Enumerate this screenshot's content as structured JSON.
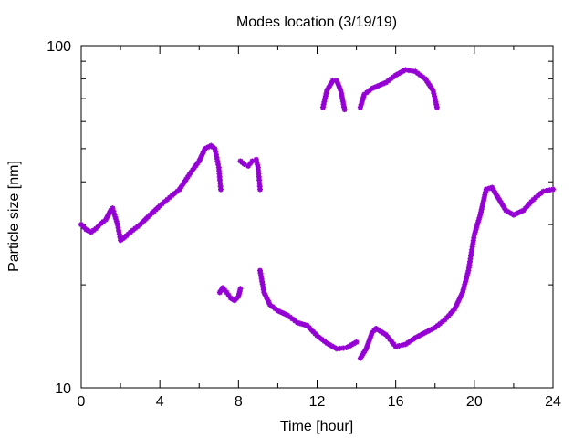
{
  "chart_data": {
    "type": "scatter",
    "title": "Modes location (3/19/19)",
    "xlabel": "Time [hour]",
    "ylabel": "Particle size [nm]",
    "xlim": [
      0,
      24
    ],
    "ylim": [
      10,
      100
    ],
    "yscale": "log",
    "x_ticks": [
      0,
      4,
      8,
      12,
      16,
      20,
      24
    ],
    "y_ticks": [
      10,
      100
    ],
    "grid": false,
    "marker_color": "#9400d3",
    "series": [
      {
        "segments": [
          [
            [
              0,
              30
            ],
            [
              0.25,
              29
            ],
            [
              0.5,
              28.5
            ],
            [
              0.75,
              29.2
            ],
            [
              1,
              30.2
            ],
            [
              1.25,
              31
            ],
            [
              1.5,
              33
            ],
            [
              1.6,
              33.5
            ],
            [
              1.7,
              32
            ],
            [
              1.85,
              30
            ],
            [
              2,
              27
            ],
            [
              2.2,
              27.5
            ],
            [
              2.5,
              28.5
            ],
            [
              3,
              30
            ],
            [
              3.5,
              32
            ],
            [
              4,
              34
            ],
            [
              4.5,
              36
            ],
            [
              5,
              38
            ],
            [
              5.5,
              42
            ],
            [
              6,
              46
            ],
            [
              6.3,
              50
            ],
            [
              6.6,
              51
            ],
            [
              6.8,
              50
            ],
            [
              6.9,
              47
            ],
            [
              7.0,
              44
            ],
            [
              7.1,
              38
            ]
          ],
          [
            [
              7.05,
              19
            ],
            [
              7.2,
              19.6
            ],
            [
              7.4,
              19
            ],
            [
              7.6,
              18.3
            ],
            [
              7.8,
              18
            ],
            [
              8.0,
              18.5
            ],
            [
              8.1,
              19.5
            ]
          ],
          [
            [
              8.1,
              46
            ],
            [
              8.3,
              45
            ],
            [
              8.5,
              44.5
            ],
            [
              8.7,
              46
            ],
            [
              8.9,
              46.5
            ],
            [
              9.0,
              44
            ],
            [
              9.1,
              38
            ]
          ],
          [
            [
              9.1,
              22
            ],
            [
              9.3,
              19
            ],
            [
              9.6,
              17.5
            ],
            [
              10,
              16.8
            ],
            [
              10.5,
              16.3
            ],
            [
              11,
              15.5
            ],
            [
              11.5,
              15.2
            ],
            [
              12,
              14.2
            ],
            [
              12.5,
              13.5
            ],
            [
              13,
              13
            ],
            [
              13.5,
              13.1
            ],
            [
              14,
              13.6
            ]
          ],
          [
            [
              14.2,
              12.2
            ],
            [
              14.5,
              13
            ],
            [
              14.8,
              14.5
            ],
            [
              15,
              14.9
            ],
            [
              15.5,
              14.3
            ],
            [
              16,
              13.2
            ],
            [
              16.5,
              13.4
            ],
            [
              17,
              14
            ],
            [
              17.5,
              14.5
            ],
            [
              18,
              15
            ],
            [
              18.5,
              15.8
            ],
            [
              19,
              17
            ],
            [
              19.4,
              19
            ],
            [
              19.7,
              22
            ],
            [
              20,
              28
            ],
            [
              20.3,
              32
            ],
            [
              20.6,
              38
            ],
            [
              20.9,
              38.5
            ],
            [
              21.2,
              36
            ],
            [
              21.6,
              33
            ],
            [
              22,
              32
            ],
            [
              22.5,
              33
            ],
            [
              23,
              35.5
            ],
            [
              23.5,
              37.5
            ],
            [
              24,
              38
            ]
          ],
          [
            [
              12.3,
              66
            ],
            [
              12.5,
              74
            ],
            [
              12.8,
              79
            ],
            [
              13.0,
              79
            ],
            [
              13.2,
              74
            ],
            [
              13.4,
              65
            ]
          ],
          [
            [
              14.2,
              66
            ],
            [
              14.4,
              72
            ],
            [
              14.8,
              75
            ],
            [
              15.5,
              78
            ],
            [
              16,
              82
            ],
            [
              16.5,
              85
            ],
            [
              17,
              84
            ],
            [
              17.5,
              80
            ],
            [
              17.9,
              74
            ],
            [
              18.1,
              66
            ]
          ]
        ]
      }
    ]
  }
}
